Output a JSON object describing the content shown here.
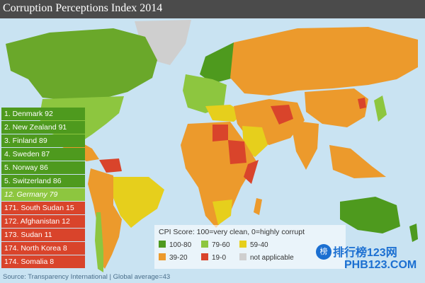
{
  "title": "Corruption Perceptions Index 2014",
  "rankings": [
    {
      "text": "1. Denmark 92",
      "color": "#4e9a1e",
      "italic": false
    },
    {
      "text": "2. New Zealand 91",
      "color": "#4e9a1e",
      "italic": false
    },
    {
      "text": "3. Finland 89",
      "color": "#4e9a1e",
      "italic": false
    },
    {
      "text": "4. Sweden 87",
      "color": "#4e9a1e",
      "italic": false
    },
    {
      "text": "5. Norway 86",
      "color": "#4e9a1e",
      "italic": false
    },
    {
      "text": "5. Switzerland 86",
      "color": "#4e9a1e",
      "italic": false
    },
    {
      "text": "12. Germany 79",
      "color": "#8dc63f",
      "italic": true
    },
    {
      "text": "171. South Sudan 15",
      "color": "#d9442b",
      "italic": false
    },
    {
      "text": "172. Afghanistan 12",
      "color": "#d9442b",
      "italic": false
    },
    {
      "text": "173. Sudan 11",
      "color": "#d9442b",
      "italic": false
    },
    {
      "text": "174. North Korea 8",
      "color": "#d9442b",
      "italic": false
    },
    {
      "text": "174. Somalia 8",
      "color": "#d9442b",
      "italic": false
    }
  ],
  "legend": {
    "title": "CPI Score: 100=very clean, 0=highly corrupt",
    "items": [
      {
        "label": "100-80",
        "color": "#4e9a1e"
      },
      {
        "label": "79-60",
        "color": "#8dc63f"
      },
      {
        "label": "59-40",
        "color": "#e6cf1c"
      },
      {
        "label": "39-20",
        "color": "#ec9a2c"
      },
      {
        "label": "19-0",
        "color": "#d9442b"
      },
      {
        "label": "not applicable",
        "color": "#cfcfcf"
      }
    ]
  },
  "source": "Source: Transparency International | Global average=43",
  "watermark": {
    "zh": "排行榜123网",
    "en": "PHB123.COM",
    "badge": "榜"
  },
  "colors": {
    "ocean": "#c9e3f2",
    "titlebar": "#4b4b4b"
  }
}
